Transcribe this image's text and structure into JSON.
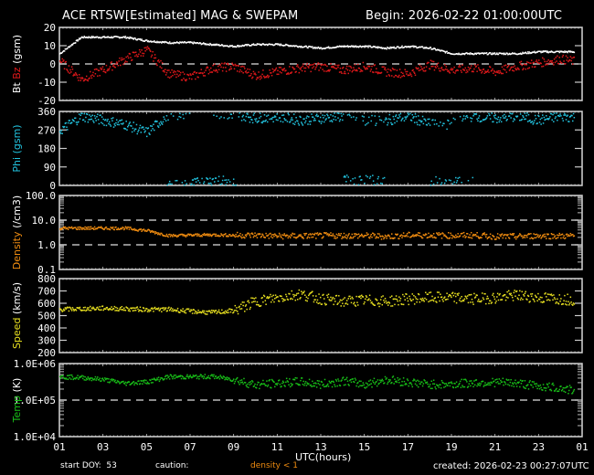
{
  "header": {
    "title": "ACE RTSW[Estimated] MAG & SWEPAM",
    "begin": "Begin: 2026-02-22 01:00:00UTC"
  },
  "footer": {
    "start_doy": "start DOY:  53",
    "caution": "caution:",
    "density_caution": "density < 1",
    "created": "created: 2026-02-23 00:27:07UTC",
    "xaxis_label": "UTC(hours)"
  },
  "colors": {
    "background": "#000000",
    "frame": "#ffffff",
    "bt": "#ffffff",
    "bz": "#e0181a",
    "phi": "#22c4e0",
    "density": "#f08c10",
    "speed": "#e8e020",
    "temp": "#18c018",
    "ref_line": "#e0e0e0"
  },
  "chart_data": [
    {
      "type": "scatter",
      "title": "Bt / Bz (gsm)",
      "ylabel_parts": [
        {
          "text": "Bt",
          "color": "#ffffff"
        },
        {
          "text": "Bz",
          "color": "#e0181a"
        },
        {
          "text": "(gsm)",
          "color": "#ffffff"
        }
      ],
      "yticks": [
        "20",
        "10",
        "0",
        "-10",
        "-20"
      ],
      "ylim": [
        -20,
        20
      ],
      "scale": "linear",
      "ref_lines": [
        0
      ],
      "x": [
        0,
        1,
        2,
        3,
        4,
        5,
        6,
        7,
        8,
        9,
        10,
        11,
        12,
        13,
        14,
        15,
        16,
        17,
        18,
        19,
        20,
        21,
        22,
        23,
        24
      ],
      "series": [
        {
          "name": "Bt",
          "color": "#ffffff",
          "values": [
            6,
            15,
            15,
            15,
            13,
            12,
            12,
            11,
            10,
            11,
            11,
            10,
            9,
            10,
            10,
            9,
            10,
            9,
            6,
            6,
            6,
            6,
            7,
            7,
            7
          ]
        },
        {
          "name": "Bz",
          "color": "#e0181a",
          "values": [
            2,
            -8,
            -3,
            3,
            8,
            -5,
            -7,
            -2,
            -1,
            -6,
            -4,
            -2,
            -1,
            -3,
            -1,
            -4,
            -5,
            0,
            -3,
            -2,
            -4,
            -1,
            1,
            3,
            1
          ]
        }
      ]
    },
    {
      "type": "scatter",
      "title": "Phi (gsm)",
      "ylabel_parts": [
        {
          "text": "Phi",
          "color": "#22c4e0"
        },
        {
          "text": "(gsm)",
          "color": "#22c4e0"
        }
      ],
      "yticks": [
        "360",
        "270",
        "180",
        "90",
        "0"
      ],
      "ylim": [
        0,
        360
      ],
      "scale": "linear",
      "ref_lines": [],
      "x": [
        0,
        1,
        2,
        3,
        4,
        5,
        6,
        7,
        8,
        9,
        10,
        11,
        12,
        13,
        14,
        15,
        16,
        17,
        18,
        19,
        20,
        21,
        22,
        23,
        24
      ],
      "series": [
        {
          "name": "Phi",
          "color": "#22c4e0",
          "values": [
            270,
            340,
            320,
            300,
            260,
            350,
            10,
            30,
            350,
            330,
            340,
            320,
            330,
            340,
            30,
            320,
            340,
            300,
            20,
            340,
            330,
            340,
            320,
            340,
            330
          ]
        }
      ]
    },
    {
      "type": "scatter",
      "title": "Density (/cm3)",
      "ylabel_parts": [
        {
          "text": "Density",
          "color": "#f08c10"
        },
        {
          "text": "(/cm3)",
          "color": "#ffffff"
        }
      ],
      "yticks": [
        "100.0",
        "10.0",
        "1.0",
        "0.1"
      ],
      "ylim": [
        0.1,
        100
      ],
      "scale": "log",
      "ref_lines": [
        10,
        1
      ],
      "x": [
        0,
        1,
        2,
        3,
        4,
        5,
        6,
        7,
        8,
        9,
        10,
        11,
        12,
        13,
        14,
        15,
        16,
        17,
        18,
        19,
        20,
        21,
        22,
        23,
        24
      ],
      "series": [
        {
          "name": "Density",
          "color": "#f08c10",
          "values": [
            5,
            5,
            5,
            5,
            4,
            2.5,
            2.6,
            2.7,
            2.6,
            2.6,
            2.4,
            2.4,
            2.5,
            2.5,
            2.5,
            2.3,
            2.6,
            2.6,
            2.5,
            2.6,
            2.3,
            2.3,
            2.5,
            2.4,
            2.4
          ]
        }
      ]
    },
    {
      "type": "scatter",
      "title": "Speed (km/s)",
      "ylabel_parts": [
        {
          "text": "Speed",
          "color": "#e8e020"
        },
        {
          "text": "(km/s)",
          "color": "#ffffff"
        }
      ],
      "yticks": [
        "800",
        "700",
        "600",
        "500",
        "400",
        "300",
        "200"
      ],
      "ylim": [
        200,
        800
      ],
      "scale": "linear",
      "ref_lines": [],
      "x": [
        0,
        1,
        2,
        3,
        4,
        5,
        6,
        7,
        8,
        9,
        10,
        11,
        12,
        13,
        14,
        15,
        16,
        17,
        18,
        19,
        20,
        21,
        22,
        23,
        24
      ],
      "series": [
        {
          "name": "Speed",
          "color": "#e8e020",
          "values": [
            555,
            560,
            565,
            560,
            555,
            555,
            540,
            530,
            545,
            620,
            650,
            680,
            640,
            620,
            630,
            620,
            640,
            650,
            650,
            640,
            650,
            670,
            650,
            640,
            630
          ]
        }
      ]
    },
    {
      "type": "scatter",
      "title": "Temp (K)",
      "ylabel_parts": [
        {
          "text": "Temp",
          "color": "#18c018"
        },
        {
          "text": "(K)",
          "color": "#ffffff"
        }
      ],
      "yticks": [
        "1.0E+06",
        "1.0E+05",
        "1.0E+04"
      ],
      "ylim": [
        10000,
        1000000
      ],
      "scale": "log",
      "ref_lines": [
        100000
      ],
      "x": [
        0,
        1,
        2,
        3,
        4,
        5,
        6,
        7,
        8,
        9,
        10,
        11,
        12,
        13,
        14,
        15,
        16,
        17,
        18,
        19,
        20,
        21,
        22,
        23,
        24
      ],
      "series": [
        {
          "name": "Temp",
          "color": "#18c018",
          "values": [
            450000,
            430000,
            380000,
            300000,
            330000,
            450000,
            450000,
            460000,
            380000,
            270000,
            300000,
            330000,
            280000,
            350000,
            280000,
            380000,
            320000,
            280000,
            280000,
            310000,
            320000,
            300000,
            250000,
            220000,
            170000
          ]
        }
      ]
    }
  ],
  "xaxis": {
    "ticks": [
      "01",
      "03",
      "05",
      "07",
      "09",
      "11",
      "13",
      "15",
      "17",
      "19",
      "21",
      "23",
      "01"
    ],
    "xlim": [
      0,
      24
    ]
  }
}
